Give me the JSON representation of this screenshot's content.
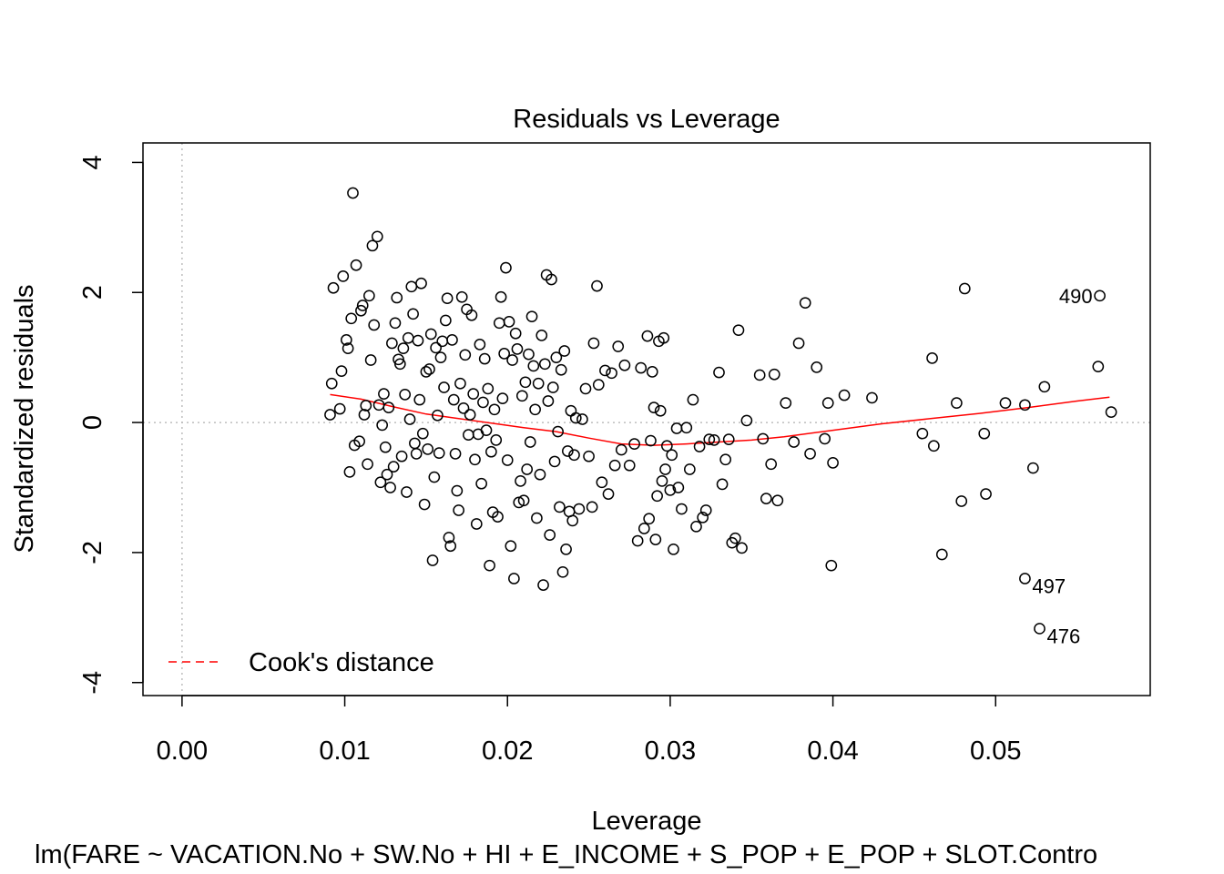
{
  "chart_data": {
    "type": "scatter",
    "title": "Residuals vs Leverage",
    "xlabel": "Leverage",
    "ylabel": "Standardized residuals",
    "subtitle": "lm(FARE ~ VACATION.No + SW.No + HI + E_INCOME + S_POP + E_POP + SLOT.Contro",
    "xlim": [
      -0.0024,
      0.0595
    ],
    "ylim": [
      -4.2,
      4.3
    ],
    "x_ticks": [
      0.0,
      0.01,
      0.02,
      0.03,
      0.04,
      0.05
    ],
    "x_tick_labels": [
      "0.00",
      "0.01",
      "0.02",
      "0.03",
      "0.04",
      "0.05"
    ],
    "y_ticks": [
      -4,
      -2,
      0,
      2,
      4
    ],
    "y_tick_labels": [
      "-4",
      "-2",
      "0",
      "2",
      "4"
    ],
    "reference_lines": {
      "x": 0,
      "y": 0,
      "style": "dotted",
      "color": "#bdbdbd"
    },
    "legend": {
      "entries": [
        "Cook's distance"
      ],
      "position": "bottom-left",
      "line_color": "#ff0000",
      "line_style": "dashed"
    },
    "smoother": {
      "color": "#ff0000",
      "points": [
        [
          0.0091,
          0.43
        ],
        [
          0.011,
          0.36
        ],
        [
          0.013,
          0.24
        ],
        [
          0.015,
          0.13
        ],
        [
          0.017,
          0.06
        ],
        [
          0.019,
          -0.01
        ],
        [
          0.021,
          -0.08
        ],
        [
          0.023,
          -0.14
        ],
        [
          0.025,
          -0.24
        ],
        [
          0.027,
          -0.33
        ],
        [
          0.029,
          -0.35
        ],
        [
          0.031,
          -0.33
        ],
        [
          0.033,
          -0.3
        ],
        [
          0.035,
          -0.27
        ],
        [
          0.037,
          -0.22
        ],
        [
          0.04,
          -0.12
        ],
        [
          0.043,
          -0.02
        ],
        [
          0.046,
          0.06
        ],
        [
          0.049,
          0.14
        ],
        [
          0.052,
          0.23
        ],
        [
          0.055,
          0.33
        ],
        [
          0.057,
          0.39
        ]
      ]
    },
    "labeled_points": [
      {
        "label": "490",
        "x": 0.0564,
        "y": 1.95
      },
      {
        "label": "497",
        "x": 0.0518,
        "y": -2.4
      },
      {
        "label": "476",
        "x": 0.0527,
        "y": -3.17
      }
    ],
    "points": [
      [
        0.0091,
        0.12
      ],
      [
        0.0092,
        0.6
      ],
      [
        0.0093,
        2.07
      ],
      [
        0.0097,
        0.21
      ],
      [
        0.0098,
        0.79
      ],
      [
        0.0099,
        2.25
      ],
      [
        0.0101,
        1.27
      ],
      [
        0.0102,
        1.14
      ],
      [
        0.0103,
        -0.76
      ],
      [
        0.0104,
        1.6
      ],
      [
        0.0105,
        3.53
      ],
      [
        0.0106,
        -0.35
      ],
      [
        0.0107,
        2.42
      ],
      [
        0.0109,
        -0.29
      ],
      [
        0.011,
        1.72
      ],
      [
        0.0111,
        1.8
      ],
      [
        0.0112,
        0.12
      ],
      [
        0.0113,
        0.26
      ],
      [
        0.0114,
        -0.64
      ],
      [
        0.0115,
        1.95
      ],
      [
        0.0116,
        0.96
      ],
      [
        0.0117,
        2.72
      ],
      [
        0.0118,
        1.5
      ],
      [
        0.012,
        2.86
      ],
      [
        0.0121,
        0.27
      ],
      [
        0.0122,
        -0.92
      ],
      [
        0.0123,
        -0.04
      ],
      [
        0.0124,
        0.44
      ],
      [
        0.0125,
        -0.38
      ],
      [
        0.0126,
        -0.8
      ],
      [
        0.0127,
        0.23
      ],
      [
        0.0128,
        -1.0
      ],
      [
        0.0129,
        1.22
      ],
      [
        0.013,
        -0.68
      ],
      [
        0.0131,
        1.53
      ],
      [
        0.0132,
        1.92
      ],
      [
        0.0133,
        0.97
      ],
      [
        0.0134,
        0.9
      ],
      [
        0.0135,
        -0.52
      ],
      [
        0.0136,
        1.14
      ],
      [
        0.0137,
        0.43
      ],
      [
        0.0138,
        -1.07
      ],
      [
        0.0139,
        1.3
      ],
      [
        0.014,
        0.05
      ],
      [
        0.0141,
        2.09
      ],
      [
        0.0142,
        1.67
      ],
      [
        0.0143,
        -0.32
      ],
      [
        0.0144,
        -0.48
      ],
      [
        0.0145,
        1.26
      ],
      [
        0.0146,
        0.35
      ],
      [
        0.0147,
        2.14
      ],
      [
        0.0148,
        -0.17
      ],
      [
        0.0149,
        -1.26
      ],
      [
        0.015,
        0.78
      ],
      [
        0.0151,
        -0.41
      ],
      [
        0.0152,
        0.82
      ],
      [
        0.0153,
        1.36
      ],
      [
        0.0154,
        -2.12
      ],
      [
        0.0155,
        -0.84
      ],
      [
        0.0156,
        1.15
      ],
      [
        0.0157,
        0.11
      ],
      [
        0.0158,
        -0.47
      ],
      [
        0.0159,
        1.0
      ],
      [
        0.016,
        1.25
      ],
      [
        0.0161,
        0.54
      ],
      [
        0.0162,
        1.57
      ],
      [
        0.0163,
        1.91
      ],
      [
        0.0164,
        -1.77
      ],
      [
        0.0165,
        -1.9
      ],
      [
        0.0166,
        1.27
      ],
      [
        0.0167,
        0.35
      ],
      [
        0.0168,
        -0.48
      ],
      [
        0.0169,
        -1.05
      ],
      [
        0.017,
        -1.35
      ],
      [
        0.0171,
        0.6
      ],
      [
        0.0172,
        1.93
      ],
      [
        0.0173,
        0.22
      ],
      [
        0.0174,
        1.04
      ],
      [
        0.0175,
        1.74
      ],
      [
        0.0176,
        -0.19
      ],
      [
        0.0177,
        0.12
      ],
      [
        0.0178,
        1.65
      ],
      [
        0.0179,
        0.44
      ],
      [
        0.018,
        -0.57
      ],
      [
        0.0181,
        -1.56
      ],
      [
        0.0182,
        -0.18
      ],
      [
        0.0183,
        1.2
      ],
      [
        0.0184,
        -0.94
      ],
      [
        0.0185,
        0.31
      ],
      [
        0.0186,
        0.98
      ],
      [
        0.0187,
        -0.12
      ],
      [
        0.0188,
        0.52
      ],
      [
        0.0189,
        -2.2
      ],
      [
        0.019,
        -0.45
      ],
      [
        0.0191,
        -1.38
      ],
      [
        0.0192,
        0.2
      ],
      [
        0.0193,
        -0.27
      ],
      [
        0.0194,
        -1.45
      ],
      [
        0.0195,
        1.53
      ],
      [
        0.0196,
        1.93
      ],
      [
        0.0197,
        0.37
      ],
      [
        0.0198,
        1.06
      ],
      [
        0.0199,
        2.38
      ],
      [
        0.02,
        -0.58
      ],
      [
        0.0201,
        1.55
      ],
      [
        0.0202,
        -1.9
      ],
      [
        0.0203,
        0.96
      ],
      [
        0.0204,
        -2.4
      ],
      [
        0.0205,
        1.37
      ],
      [
        0.0206,
        1.13
      ],
      [
        0.0207,
        -1.23
      ],
      [
        0.0208,
        -0.9
      ],
      [
        0.0209,
        0.41
      ],
      [
        0.021,
        -1.2
      ],
      [
        0.0211,
        0.62
      ],
      [
        0.0212,
        -0.72
      ],
      [
        0.0213,
        1.05
      ],
      [
        0.0214,
        -0.3
      ],
      [
        0.0215,
        1.63
      ],
      [
        0.0216,
        0.87
      ],
      [
        0.0217,
        0.2
      ],
      [
        0.0218,
        -1.47
      ],
      [
        0.0219,
        0.6
      ],
      [
        0.022,
        -0.8
      ],
      [
        0.0221,
        1.34
      ],
      [
        0.0222,
        -2.5
      ],
      [
        0.0223,
        0.9
      ],
      [
        0.0224,
        2.27
      ],
      [
        0.0225,
        0.33
      ],
      [
        0.0226,
        -1.73
      ],
      [
        0.0227,
        2.2
      ],
      [
        0.0228,
        0.54
      ],
      [
        0.0229,
        -0.6
      ],
      [
        0.023,
        1.0
      ],
      [
        0.0231,
        -0.14
      ],
      [
        0.0232,
        -1.3
      ],
      [
        0.0233,
        0.81
      ],
      [
        0.0234,
        -2.3
      ],
      [
        0.0235,
        1.1
      ],
      [
        0.0236,
        -1.95
      ],
      [
        0.0237,
        -0.44
      ],
      [
        0.0238,
        -1.37
      ],
      [
        0.0239,
        0.18
      ],
      [
        0.024,
        -1.51
      ],
      [
        0.0241,
        -0.5
      ],
      [
        0.0242,
        0.07
      ],
      [
        0.0244,
        -1.33
      ],
      [
        0.0246,
        0.05
      ],
      [
        0.0248,
        0.52
      ],
      [
        0.025,
        -0.52
      ],
      [
        0.0252,
        -1.3
      ],
      [
        0.0253,
        1.22
      ],
      [
        0.0255,
        2.1
      ],
      [
        0.0256,
        0.58
      ],
      [
        0.0258,
        -0.92
      ],
      [
        0.026,
        0.8
      ],
      [
        0.0262,
        -1.1
      ],
      [
        0.0264,
        0.76
      ],
      [
        0.0266,
        -0.66
      ],
      [
        0.0268,
        1.17
      ],
      [
        0.027,
        -0.42
      ],
      [
        0.0272,
        0.88
      ],
      [
        0.0275,
        -0.66
      ],
      [
        0.0278,
        -0.33
      ],
      [
        0.028,
        -1.82
      ],
      [
        0.0282,
        0.84
      ],
      [
        0.0284,
        -1.63
      ],
      [
        0.0286,
        1.33
      ],
      [
        0.0287,
        -1.48
      ],
      [
        0.0288,
        -0.28
      ],
      [
        0.0289,
        0.78
      ],
      [
        0.029,
        0.23
      ],
      [
        0.0291,
        -1.8
      ],
      [
        0.0292,
        -1.13
      ],
      [
        0.0293,
        1.25
      ],
      [
        0.0294,
        0.18
      ],
      [
        0.0295,
        -0.9
      ],
      [
        0.0296,
        1.3
      ],
      [
        0.0297,
        -0.72
      ],
      [
        0.0298,
        -0.36
      ],
      [
        0.03,
        -1.04
      ],
      [
        0.0301,
        -0.5
      ],
      [
        0.0302,
        -1.95
      ],
      [
        0.0304,
        -0.09
      ],
      [
        0.0305,
        -1.0
      ],
      [
        0.0307,
        -1.33
      ],
      [
        0.031,
        -0.08
      ],
      [
        0.0312,
        -0.72
      ],
      [
        0.0314,
        0.35
      ],
      [
        0.0316,
        -1.6
      ],
      [
        0.0318,
        -0.37
      ],
      [
        0.032,
        -1.46
      ],
      [
        0.0322,
        -1.35
      ],
      [
        0.0324,
        -0.26
      ],
      [
        0.0327,
        -0.27
      ],
      [
        0.033,
        0.77
      ],
      [
        0.0332,
        -0.95
      ],
      [
        0.0334,
        -0.57
      ],
      [
        0.0336,
        -0.26
      ],
      [
        0.0338,
        -1.85
      ],
      [
        0.034,
        -1.78
      ],
      [
        0.0342,
        1.42
      ],
      [
        0.0344,
        -1.93
      ],
      [
        0.0347,
        0.03
      ],
      [
        0.0355,
        0.73
      ],
      [
        0.0357,
        -0.25
      ],
      [
        0.0359,
        -1.17
      ],
      [
        0.0362,
        -0.64
      ],
      [
        0.0364,
        0.74
      ],
      [
        0.0366,
        -1.2
      ],
      [
        0.0371,
        0.3
      ],
      [
        0.0376,
        -0.3
      ],
      [
        0.0379,
        1.22
      ],
      [
        0.0383,
        1.84
      ],
      [
        0.0386,
        -0.48
      ],
      [
        0.039,
        0.85
      ],
      [
        0.0395,
        -0.25
      ],
      [
        0.0397,
        0.3
      ],
      [
        0.0399,
        -2.2
      ],
      [
        0.04,
        -0.62
      ],
      [
        0.0407,
        0.42
      ],
      [
        0.0424,
        0.38
      ],
      [
        0.0455,
        -0.17
      ],
      [
        0.0461,
        0.99
      ],
      [
        0.0462,
        -0.36
      ],
      [
        0.0467,
        -2.03
      ],
      [
        0.0476,
        0.3
      ],
      [
        0.0479,
        -1.21
      ],
      [
        0.0481,
        2.06
      ],
      [
        0.0493,
        -0.17
      ],
      [
        0.0494,
        -1.1
      ],
      [
        0.0506,
        0.3
      ],
      [
        0.0518,
        0.27
      ],
      [
        0.0518,
        -2.4
      ],
      [
        0.0523,
        -0.7
      ],
      [
        0.0527,
        -3.17
      ],
      [
        0.053,
        0.55
      ],
      [
        0.0563,
        0.86
      ],
      [
        0.0564,
        1.95
      ],
      [
        0.0571,
        0.16
      ]
    ]
  }
}
